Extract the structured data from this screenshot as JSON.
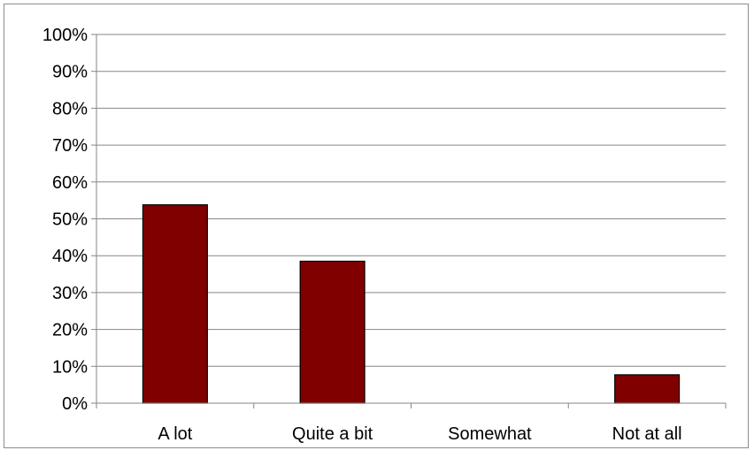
{
  "chart_data": {
    "type": "bar",
    "categories": [
      "A lot",
      "Quite a bit",
      "Somewhat",
      "Not at all"
    ],
    "values": [
      0.538,
      0.385,
      0.0,
      0.077
    ],
    "ylim": [
      0,
      1
    ],
    "yticks": [
      0,
      0.1,
      0.2,
      0.3,
      0.4,
      0.5,
      0.6,
      0.7,
      0.8,
      0.9,
      1.0
    ],
    "ytick_labels": [
      "0%",
      "10%",
      "20%",
      "30%",
      "40%",
      "50%",
      "60%",
      "70%",
      "80%",
      "90%",
      "100%"
    ],
    "title": "",
    "xlabel": "",
    "ylabel": "",
    "grid": true,
    "legend": "none",
    "colors": {
      "bar": "#800000",
      "grid": "#868686"
    }
  }
}
